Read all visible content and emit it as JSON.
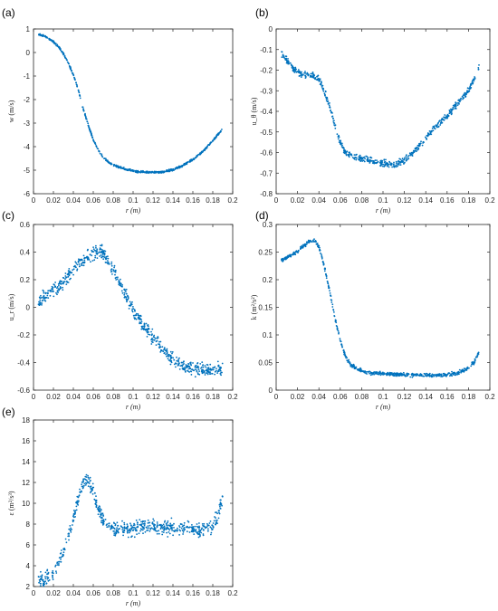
{
  "point_color": "#0072BD",
  "chart_data": [
    {
      "type": "scatter",
      "panel_label": "(a)",
      "ylabel": "w (m/s)",
      "xlabel": "r (m)",
      "xlim": [
        0,
        0.2
      ],
      "ylim": [
        -6,
        1
      ],
      "xticks": [
        "0",
        "0.02",
        "0.04",
        "0.06",
        "0.08",
        "0.1",
        "0.12",
        "0.14",
        "0.16",
        "0.18",
        "0.2"
      ],
      "yticks": [
        "-6",
        "-5",
        "-4",
        "-3",
        "-2",
        "-1",
        "0",
        "1"
      ],
      "grid": false,
      "series": [
        {
          "points": [
            [
              0.005,
              0.77
            ],
            [
              0.01,
              0.72
            ],
            [
              0.015,
              0.6
            ],
            [
              0.02,
              0.45
            ],
            [
              0.025,
              0.25
            ],
            [
              0.03,
              -0.05
            ],
            [
              0.035,
              -0.45
            ],
            [
              0.04,
              -0.95
            ],
            [
              0.045,
              -1.6
            ],
            [
              0.05,
              -2.4
            ],
            [
              0.055,
              -3.1
            ],
            [
              0.06,
              -3.7
            ],
            [
              0.065,
              -4.15
            ],
            [
              0.07,
              -4.45
            ],
            [
              0.075,
              -4.65
            ],
            [
              0.08,
              -4.78
            ],
            [
              0.09,
              -4.93
            ],
            [
              0.1,
              -5.03
            ],
            [
              0.11,
              -5.08
            ],
            [
              0.12,
              -5.1
            ],
            [
              0.13,
              -5.07
            ],
            [
              0.14,
              -4.98
            ],
            [
              0.15,
              -4.8
            ],
            [
              0.16,
              -4.55
            ],
            [
              0.17,
              -4.2
            ],
            [
              0.18,
              -3.75
            ],
            [
              0.19,
              -3.25
            ]
          ],
          "spread": 0.06
        }
      ]
    },
    {
      "type": "scatter",
      "panel_label": "(b)",
      "ylabel": "u_θ (m/s)",
      "xlabel": "r (m)",
      "xlim": [
        0,
        0.2
      ],
      "ylim": [
        -0.8,
        0
      ],
      "xticks": [
        "0",
        "0.02",
        "0.04",
        "0.06",
        "0.08",
        "0.1",
        "0.12",
        "0.14",
        "0.16",
        "0.18",
        "0.2"
      ],
      "yticks": [
        "-0.8",
        "-0.7",
        "-0.6",
        "-0.5",
        "-0.4",
        "-0.3",
        "-0.2",
        "-0.1",
        "0"
      ],
      "grid": false,
      "series": [
        {
          "points": [
            [
              0.005,
              -0.12
            ],
            [
              0.01,
              -0.15
            ],
            [
              0.015,
              -0.19
            ],
            [
              0.02,
              -0.21
            ],
            [
              0.025,
              -0.22
            ],
            [
              0.03,
              -0.22
            ],
            [
              0.035,
              -0.23
            ],
            [
              0.04,
              -0.24
            ],
            [
              0.045,
              -0.3
            ],
            [
              0.05,
              -0.38
            ],
            [
              0.055,
              -0.47
            ],
            [
              0.06,
              -0.55
            ],
            [
              0.065,
              -0.6
            ],
            [
              0.07,
              -0.62
            ],
            [
              0.08,
              -0.63
            ],
            [
              0.09,
              -0.64
            ],
            [
              0.1,
              -0.655
            ],
            [
              0.11,
              -0.66
            ],
            [
              0.12,
              -0.64
            ],
            [
              0.13,
              -0.59
            ],
            [
              0.14,
              -0.53
            ],
            [
              0.15,
              -0.47
            ],
            [
              0.16,
              -0.42
            ],
            [
              0.17,
              -0.36
            ],
            [
              0.18,
              -0.3
            ],
            [
              0.185,
              -0.25
            ],
            [
              0.19,
              -0.18
            ]
          ],
          "spread": 0.025
        }
      ]
    },
    {
      "type": "scatter",
      "panel_label": "(c)",
      "ylabel": "u_r (m/s)",
      "xlabel": "r (m)",
      "xlim": [
        0,
        0.2
      ],
      "ylim": [
        -0.6,
        0.6
      ],
      "xticks": [
        "0",
        "0.02",
        "0.04",
        "0.06",
        "0.08",
        "0.1",
        "0.12",
        "0.14",
        "0.16",
        "0.18",
        "0.2"
      ],
      "yticks": [
        "-0.6",
        "-0.4",
        "-0.2",
        "0",
        "0.2",
        "0.4",
        "0.6"
      ],
      "grid": false,
      "series": [
        {
          "points": [
            [
              0.005,
              0.04
            ],
            [
              0.01,
              0.07
            ],
            [
              0.015,
              0.1
            ],
            [
              0.02,
              0.13
            ],
            [
              0.025,
              0.15
            ],
            [
              0.03,
              0.18
            ],
            [
              0.035,
              0.22
            ],
            [
              0.04,
              0.27
            ],
            [
              0.045,
              0.31
            ],
            [
              0.05,
              0.34
            ],
            [
              0.055,
              0.37
            ],
            [
              0.06,
              0.39
            ],
            [
              0.065,
              0.4
            ],
            [
              0.07,
              0.39
            ],
            [
              0.075,
              0.34
            ],
            [
              0.08,
              0.27
            ],
            [
              0.085,
              0.2
            ],
            [
              0.09,
              0.12
            ],
            [
              0.095,
              0.05
            ],
            [
              0.1,
              -0.02
            ],
            [
              0.11,
              -0.12
            ],
            [
              0.12,
              -0.22
            ],
            [
              0.13,
              -0.31
            ],
            [
              0.14,
              -0.38
            ],
            [
              0.15,
              -0.42
            ],
            [
              0.16,
              -0.44
            ],
            [
              0.17,
              -0.45
            ],
            [
              0.18,
              -0.45
            ],
            [
              0.19,
              -0.45
            ]
          ],
          "spread": 0.07
        }
      ]
    },
    {
      "type": "scatter",
      "panel_label": "(d)",
      "ylabel": "k (m²/s²)",
      "xlabel": "r (m)",
      "xlim": [
        0,
        0.2
      ],
      "ylim": [
        0,
        0.3
      ],
      "xticks": [
        "0",
        "0.02",
        "0.04",
        "0.06",
        "0.08",
        "0.1",
        "0.12",
        "0.14",
        "0.16",
        "0.18",
        "0.2"
      ],
      "yticks": [
        "0",
        "0.05",
        "0.1",
        "0.15",
        "0.2",
        "0.25",
        "0.3"
      ],
      "grid": false,
      "series": [
        {
          "points": [
            [
              0.005,
              0.235
            ],
            [
              0.01,
              0.24
            ],
            [
              0.015,
              0.245
            ],
            [
              0.02,
              0.25
            ],
            [
              0.025,
              0.26
            ],
            [
              0.03,
              0.268
            ],
            [
              0.035,
              0.272
            ],
            [
              0.04,
              0.26
            ],
            [
              0.045,
              0.225
            ],
            [
              0.05,
              0.18
            ],
            [
              0.055,
              0.13
            ],
            [
              0.06,
              0.09
            ],
            [
              0.065,
              0.06
            ],
            [
              0.07,
              0.045
            ],
            [
              0.08,
              0.035
            ],
            [
              0.09,
              0.031
            ],
            [
              0.1,
              0.029
            ],
            [
              0.12,
              0.028
            ],
            [
              0.14,
              0.027
            ],
            [
              0.16,
              0.028
            ],
            [
              0.17,
              0.031
            ],
            [
              0.18,
              0.04
            ],
            [
              0.185,
              0.05
            ],
            [
              0.19,
              0.07
            ]
          ],
          "spread": 0.005
        }
      ]
    },
    {
      "type": "scatter",
      "panel_label": "(e)",
      "ylabel": "ε (m²/s³)",
      "xlabel": "r (m)",
      "xlim": [
        0,
        0.2
      ],
      "ylim": [
        2,
        18
      ],
      "xticks": [
        "0",
        "0.02",
        "0.04",
        "0.06",
        "0.08",
        "0.1",
        "0.12",
        "0.14",
        "0.16",
        "0.18",
        "0.2"
      ],
      "yticks": [
        "2",
        "4",
        "6",
        "8",
        "10",
        "12",
        "14",
        "16",
        "18"
      ],
      "grid": false,
      "series": [
        {
          "points": [
            [
              0.005,
              2.5
            ],
            [
              0.01,
              2.6
            ],
            [
              0.015,
              2.8
            ],
            [
              0.02,
              3.2
            ],
            [
              0.025,
              4.2
            ],
            [
              0.03,
              5.3
            ],
            [
              0.035,
              6.8
            ],
            [
              0.04,
              8.5
            ],
            [
              0.045,
              10.5
            ],
            [
              0.05,
              12.0
            ],
            [
              0.055,
              12.2
            ],
            [
              0.06,
              11.2
            ],
            [
              0.065,
              9.5
            ],
            [
              0.07,
              8.3
            ],
            [
              0.08,
              7.6
            ],
            [
              0.09,
              7.5
            ],
            [
              0.1,
              7.6
            ],
            [
              0.12,
              7.8
            ],
            [
              0.14,
              7.7
            ],
            [
              0.16,
              7.5
            ],
            [
              0.17,
              7.4
            ],
            [
              0.18,
              7.8
            ],
            [
              0.185,
              8.8
            ],
            [
              0.19,
              10.5
            ]
          ],
          "spread": 1.0
        }
      ]
    }
  ]
}
